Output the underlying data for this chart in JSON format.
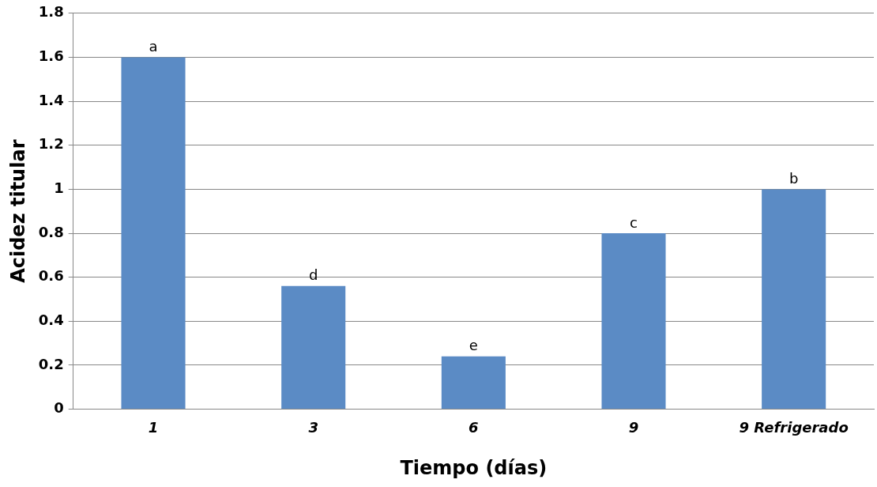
{
  "chart_data": {
    "type": "bar",
    "xlabel": "Tiempo (días)",
    "ylabel": "Acidez titular",
    "categories": [
      "1",
      "3",
      "6",
      "9",
      "9 Refrigerado"
    ],
    "values": [
      1.6,
      0.56,
      0.24,
      0.8,
      1.0
    ],
    "value_labels": [
      "a",
      "d",
      "e",
      "c",
      "b"
    ],
    "color": "#5b8bc5",
    "ylim": [
      0,
      1.8
    ],
    "yticks": [
      0,
      0.2,
      0.4,
      0.6,
      0.8,
      1,
      1.2,
      1.4,
      1.6,
      1.8
    ],
    "grid": "y",
    "legend": false
  }
}
